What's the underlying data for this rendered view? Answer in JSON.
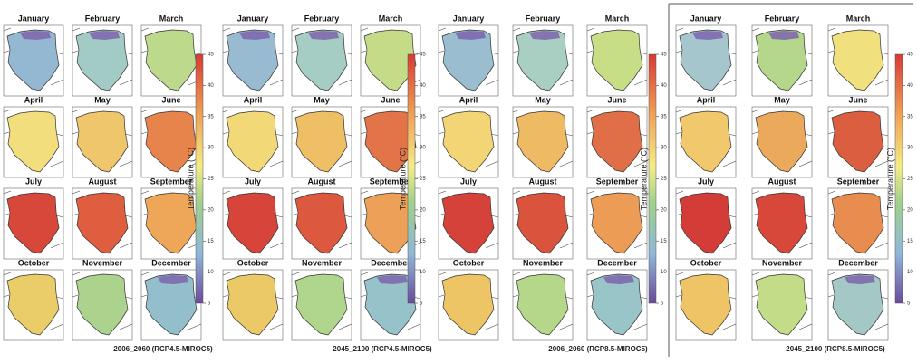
{
  "panels": [
    {
      "months": [
        "January",
        "February",
        "March",
        "April",
        "May",
        "June",
        "July",
        "August",
        "September",
        "October",
        "November",
        "December"
      ],
      "map_colors": [
        "#95b8d2",
        "#a3cbc6",
        "#bcd98c",
        "#f2de7c",
        "#f0c66c",
        "#e7844c",
        "#d8483a",
        "#de5e3f",
        "#eea659",
        "#eacc68",
        "#acd38e",
        "#92bfcb"
      ],
      "colorbar": {
        "label": "Temperature (°C)",
        "ticks": [
          5,
          10,
          15,
          20,
          25,
          30,
          35,
          40,
          45
        ]
      },
      "caption": "2006_2060 (RCP4.5-MIROC5)"
    },
    {
      "months": [
        "January",
        "February",
        "March",
        "April",
        "May",
        "June",
        "July",
        "August",
        "September",
        "October",
        "November",
        "December"
      ],
      "map_colors": [
        "#98bbd1",
        "#a6cdc4",
        "#c4dc88",
        "#f3d877",
        "#efbf66",
        "#e27448",
        "#d6443a",
        "#dc583e",
        "#eda057",
        "#ecc967",
        "#b0d58c",
        "#96c2c9"
      ],
      "colorbar": {
        "label": "Temperature (°C)",
        "ticks": [
          5,
          10,
          15,
          20,
          25,
          30,
          35,
          40,
          45
        ]
      },
      "caption": "2045_2100 (RCP4.5-MIROC5)"
    },
    {
      "months": [
        "January",
        "February",
        "March",
        "April",
        "May",
        "June",
        "July",
        "August",
        "September",
        "October",
        "November",
        "December"
      ],
      "map_colors": [
        "#9abdd0",
        "#a9cfc2",
        "#c8de86",
        "#f3d575",
        "#eeba63",
        "#e06e46",
        "#d54239",
        "#da533d",
        "#ec9c55",
        "#edc565",
        "#b4d78a",
        "#99c4c8"
      ],
      "colorbar": {
        "label": "Temperature (°C)",
        "ticks": [
          5,
          10,
          15,
          20,
          25,
          30,
          35,
          40,
          45
        ]
      },
      "caption": "2006_2060 (RCP8.5-MIROC5)"
    },
    {
      "months": [
        "January",
        "February",
        "March",
        "April",
        "May",
        "June",
        "July",
        "August",
        "September",
        "October",
        "November",
        "December"
      ],
      "map_colors": [
        "#a4c6cc",
        "#b4d78c",
        "#f0e07e",
        "#f1c86c",
        "#eba95c",
        "#dc5e40",
        "#d33c37",
        "#d8483a",
        "#e98c50",
        "#efc466",
        "#c2dc88",
        "#a3c8c6"
      ],
      "colorbar": {
        "label": "Temperature (°C)",
        "ticks": [
          5,
          10,
          15,
          20,
          25,
          30,
          35,
          40,
          45
        ]
      },
      "caption": "2045_2100 (RCP8.5-MIROC5)"
    }
  ]
}
